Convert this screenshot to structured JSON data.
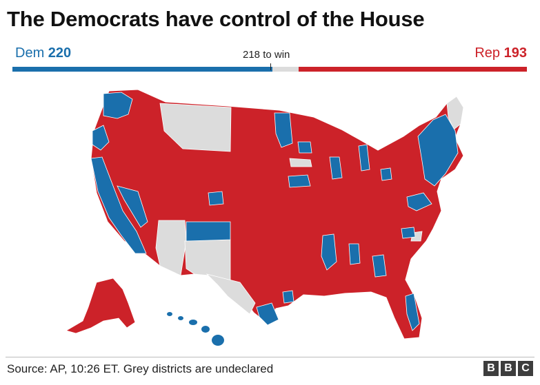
{
  "title": "The Democrats have control of the House",
  "tally": {
    "dem_party": "Dem",
    "dem_seats": "220",
    "rep_party": "Rep",
    "rep_seats": "193",
    "win_label": "218 to win",
    "total_seats": 435,
    "dem_value": 220,
    "rep_value": 193,
    "win_value": 218
  },
  "colors": {
    "dem": "#1a6fac",
    "rep": "#cc2229",
    "undeclared": "#dcdcdc"
  },
  "map": {
    "subject": "US House districts by declared winner",
    "icon": "us-district-map"
  },
  "source": "Source: AP, 10:26 ET. Grey districts are undeclared",
  "logo": [
    "B",
    "B",
    "C"
  ]
}
